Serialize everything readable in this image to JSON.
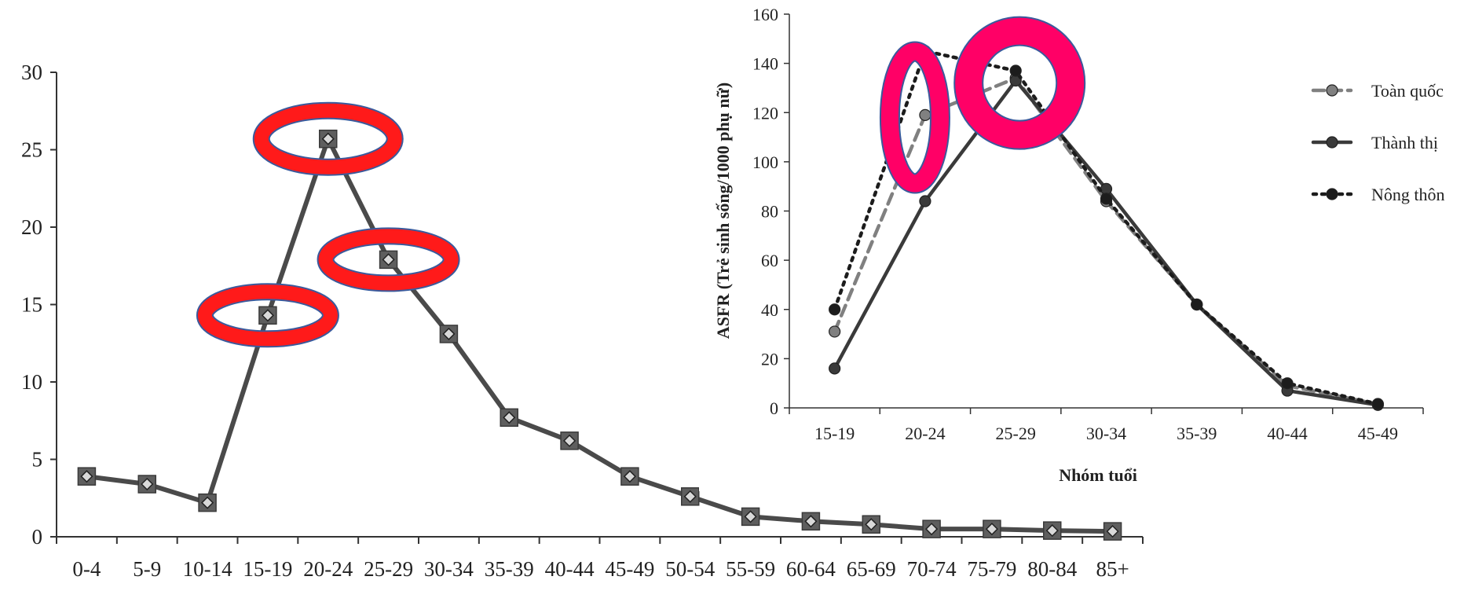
{
  "chart_data": [
    {
      "type": "line",
      "title": "",
      "xlabel": "",
      "ylabel": "",
      "categories": [
        "0-4",
        "5-9",
        "10-14",
        "15-19",
        "20-24",
        "25-29",
        "30-34",
        "35-39",
        "40-44",
        "45-49",
        "50-54",
        "55-59",
        "60-64",
        "65-69",
        "70-74",
        "75-79",
        "80-84",
        "85+"
      ],
      "series": [
        {
          "values": [
            3.9,
            3.4,
            2.2,
            14.3,
            25.7,
            17.9,
            13.1,
            7.7,
            6.2,
            3.9,
            2.6,
            1.3,
            1.0,
            0.8,
            0.5,
            0.5,
            0.4,
            0.35
          ]
        }
      ],
      "ylim": [
        0,
        30
      ],
      "yticks": [
        "0",
        "5",
        "10",
        "15",
        "20",
        "25",
        "30"
      ],
      "grid": false,
      "colors": {
        "line": "#4a4a4a",
        "marker_fill": "#5e5e5e",
        "highlight_ring": "#ff1a1a",
        "ring_border": "#3a5a9c"
      },
      "highlighted_categories": [
        "15-19",
        "20-24",
        "25-29"
      ]
    },
    {
      "type": "line",
      "title": "",
      "xlabel": "Nhóm tuổi",
      "ylabel": "ASFR (Trẻ sinh sống/1000 phụ nữ)",
      "categories": [
        "15-19",
        "20-24",
        "25-29",
        "30-34",
        "35-39",
        "40-44",
        "45-49"
      ],
      "series": [
        {
          "name": "Toàn quốc",
          "values": [
            31,
            119,
            134,
            84,
            42,
            9,
            1.5
          ],
          "style": "dashed",
          "color": "#808080"
        },
        {
          "name": "Thành thị",
          "values": [
            16,
            84,
            133,
            89,
            42,
            7,
            1.2
          ],
          "style": "solid",
          "color": "#3a3a3a"
        },
        {
          "name": "Nông thôn",
          "values": [
            40,
            145,
            137,
            85,
            42,
            10,
            1.6
          ],
          "style": "dotted",
          "color": "#1c1c1c"
        }
      ],
      "ylim": [
        0,
        160
      ],
      "yticks": [
        "0",
        "20",
        "40",
        "60",
        "80",
        "100",
        "120",
        "140",
        "160"
      ],
      "legend": "right",
      "grid": false,
      "colors": {
        "highlight_ring": "#ff0066",
        "ring_border": "#3a5a9c"
      },
      "highlighted_categories": [
        "20-24",
        "25-29"
      ]
    }
  ]
}
